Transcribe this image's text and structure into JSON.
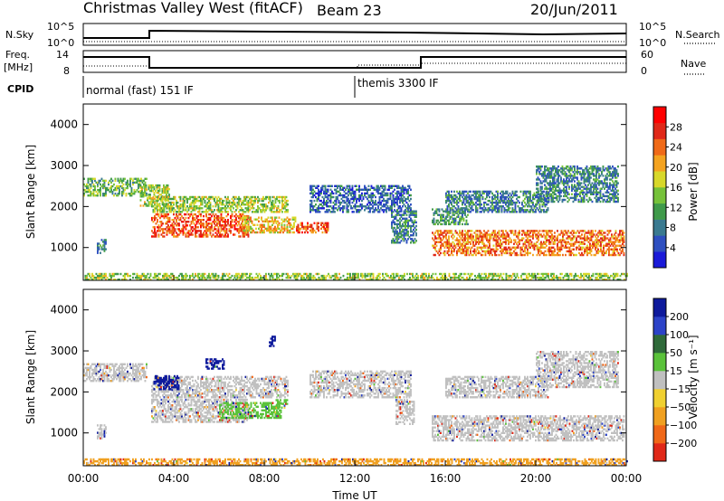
{
  "header": {
    "station": "Christmas Valley West (fitACF)",
    "beam": "Beam 23",
    "date": "20/Jun/2011"
  },
  "summary": {
    "nsky_label": "N.Sky",
    "nsky_ticks": [
      "10^5",
      "10^0"
    ],
    "nsearch_label": "N.Search",
    "nsearch_ticks": [
      "10^5",
      "10^0"
    ],
    "freq_label": "Freq.",
    "freq_unit": "[MHz]",
    "freq_ticks": [
      "14",
      "8"
    ],
    "nave_label": "Nave",
    "nave_ticks": [
      "60",
      "0"
    ],
    "cpid_label": "CPID",
    "cpid_entries": [
      {
        "text": "normal (fast) 151 IF",
        "start_hour": 0.0
      },
      {
        "text": "themis 3300 IF",
        "start_hour": 12.0
      }
    ]
  },
  "colors": {
    "power_scale": [
      "#1a1ad8",
      "#2e4fc0",
      "#3a7a90",
      "#3f9a4a",
      "#76c23a",
      "#d8d82a",
      "#f4a320",
      "#f06a18",
      "#e02818",
      "#ff0000"
    ],
    "velocity_scale": [
      "#0e1a9c",
      "#2c43c8",
      "#2f6a3a",
      "#5ac23a",
      "#c0c0c0",
      "#f0d030",
      "#f0a020",
      "#f06818",
      "#e02818"
    ]
  },
  "chart_data": [
    {
      "type": "heatmap",
      "name": "power",
      "ylabel": "Slant Range [km]",
      "yticks": [
        1000,
        2000,
        3000,
        4000
      ],
      "ylim": [
        200,
        4500
      ],
      "xticks": [
        "00:00",
        "04:00",
        "08:00",
        "12:00",
        "16:00",
        "20:00",
        "00:00"
      ],
      "xlim": [
        0,
        24
      ],
      "colorbar": {
        "label": "Power [dB]",
        "ticks": [
          "4",
          "8",
          "12",
          "16",
          "20",
          "24",
          "28"
        ],
        "range": [
          0,
          30
        ]
      },
      "bands": [
        {
          "t0": 0.0,
          "t1": 2.8,
          "r0": 2250,
          "r1": 2700,
          "v": 12
        },
        {
          "t0": 0.6,
          "t1": 1.0,
          "r0": 850,
          "r1": 1200,
          "v": 8
        },
        {
          "t0": 2.5,
          "t1": 3.8,
          "r0": 2000,
          "r1": 2500,
          "v": 14
        },
        {
          "t0": 3.0,
          "t1": 7.3,
          "r0": 1250,
          "r1": 1800,
          "v": 24
        },
        {
          "t0": 3.0,
          "t1": 9.0,
          "r0": 1850,
          "r1": 2250,
          "v": 14
        },
        {
          "t0": 7.0,
          "t1": 9.4,
          "r0": 1350,
          "r1": 1750,
          "v": 18
        },
        {
          "t0": 9.4,
          "t1": 10.8,
          "r0": 1350,
          "r1": 1600,
          "v": 24
        },
        {
          "t0": 10.0,
          "t1": 14.5,
          "r0": 1850,
          "r1": 2500,
          "v": 6
        },
        {
          "t0": 13.6,
          "t1": 14.7,
          "r0": 1100,
          "r1": 1900,
          "v": 8
        },
        {
          "t0": 15.4,
          "t1": 17.0,
          "r0": 1550,
          "r1": 1950,
          "v": 10
        },
        {
          "t0": 15.4,
          "t1": 23.9,
          "r0": 800,
          "r1": 1400,
          "v": 22
        },
        {
          "t0": 16.0,
          "t1": 20.5,
          "r0": 1850,
          "r1": 2350,
          "v": 8
        },
        {
          "t0": 20.0,
          "t1": 23.6,
          "r0": 2100,
          "r1": 3000,
          "v": 8
        },
        {
          "t0": 0.0,
          "t1": 24.0,
          "r0": 200,
          "r1": 380,
          "v": 14
        }
      ]
    },
    {
      "type": "heatmap",
      "name": "velocity",
      "ylabel": "Slant Range [km]",
      "yticks": [
        1000,
        2000,
        3000,
        4000
      ],
      "ylim": [
        200,
        4500
      ],
      "xticks": [
        "00:00",
        "04:00",
        "08:00",
        "12:00",
        "16:00",
        "20:00",
        "00:00"
      ],
      "xlim": [
        0,
        24
      ],
      "xlabel": "Time UT",
      "colorbar": {
        "label": "Velocity [m s⁻¹]",
        "ticks": [
          "200",
          "100",
          "50",
          "15",
          "−15",
          "−50",
          "−100",
          "−200"
        ],
        "range": [
          -250,
          250
        ]
      },
      "bands": [
        {
          "t0": 0.0,
          "t1": 2.8,
          "r0": 2250,
          "r1": 2700,
          "v": 0
        },
        {
          "t0": 0.6,
          "t1": 1.0,
          "r0": 850,
          "r1": 1200,
          "v": 0
        },
        {
          "t0": 3.0,
          "t1": 9.0,
          "r0": 1850,
          "r1": 2350,
          "v": 0
        },
        {
          "t0": 3.0,
          "t1": 7.3,
          "r0": 1250,
          "r1": 1800,
          "v": 0
        },
        {
          "t0": 3.1,
          "t1": 4.2,
          "r0": 2050,
          "r1": 2400,
          "v": 180
        },
        {
          "t0": 5.4,
          "t1": 6.2,
          "r0": 2550,
          "r1": 2800,
          "v": 190
        },
        {
          "t0": 8.2,
          "t1": 8.5,
          "r0": 3100,
          "r1": 3350,
          "v": 190
        },
        {
          "t0": 6.0,
          "t1": 8.7,
          "r0": 1350,
          "r1": 1750,
          "v": 45
        },
        {
          "t0": 8.5,
          "t1": 9.0,
          "r0": 1600,
          "r1": 1800,
          "v": 45
        },
        {
          "t0": 10.0,
          "t1": 14.5,
          "r0": 1850,
          "r1": 2500,
          "v": 0
        },
        {
          "t0": 13.8,
          "t1": 14.6,
          "r0": 1200,
          "r1": 1800,
          "v": 0
        },
        {
          "t0": 15.4,
          "t1": 23.9,
          "r0": 800,
          "r1": 1400,
          "v": 0
        },
        {
          "t0": 16.0,
          "t1": 20.5,
          "r0": 1850,
          "r1": 2350,
          "v": 0
        },
        {
          "t0": 20.0,
          "t1": 23.6,
          "r0": 2100,
          "r1": 3000,
          "v": 0
        },
        {
          "t0": 0.0,
          "t1": 24.0,
          "r0": 200,
          "r1": 380,
          "v": -40
        }
      ]
    }
  ]
}
